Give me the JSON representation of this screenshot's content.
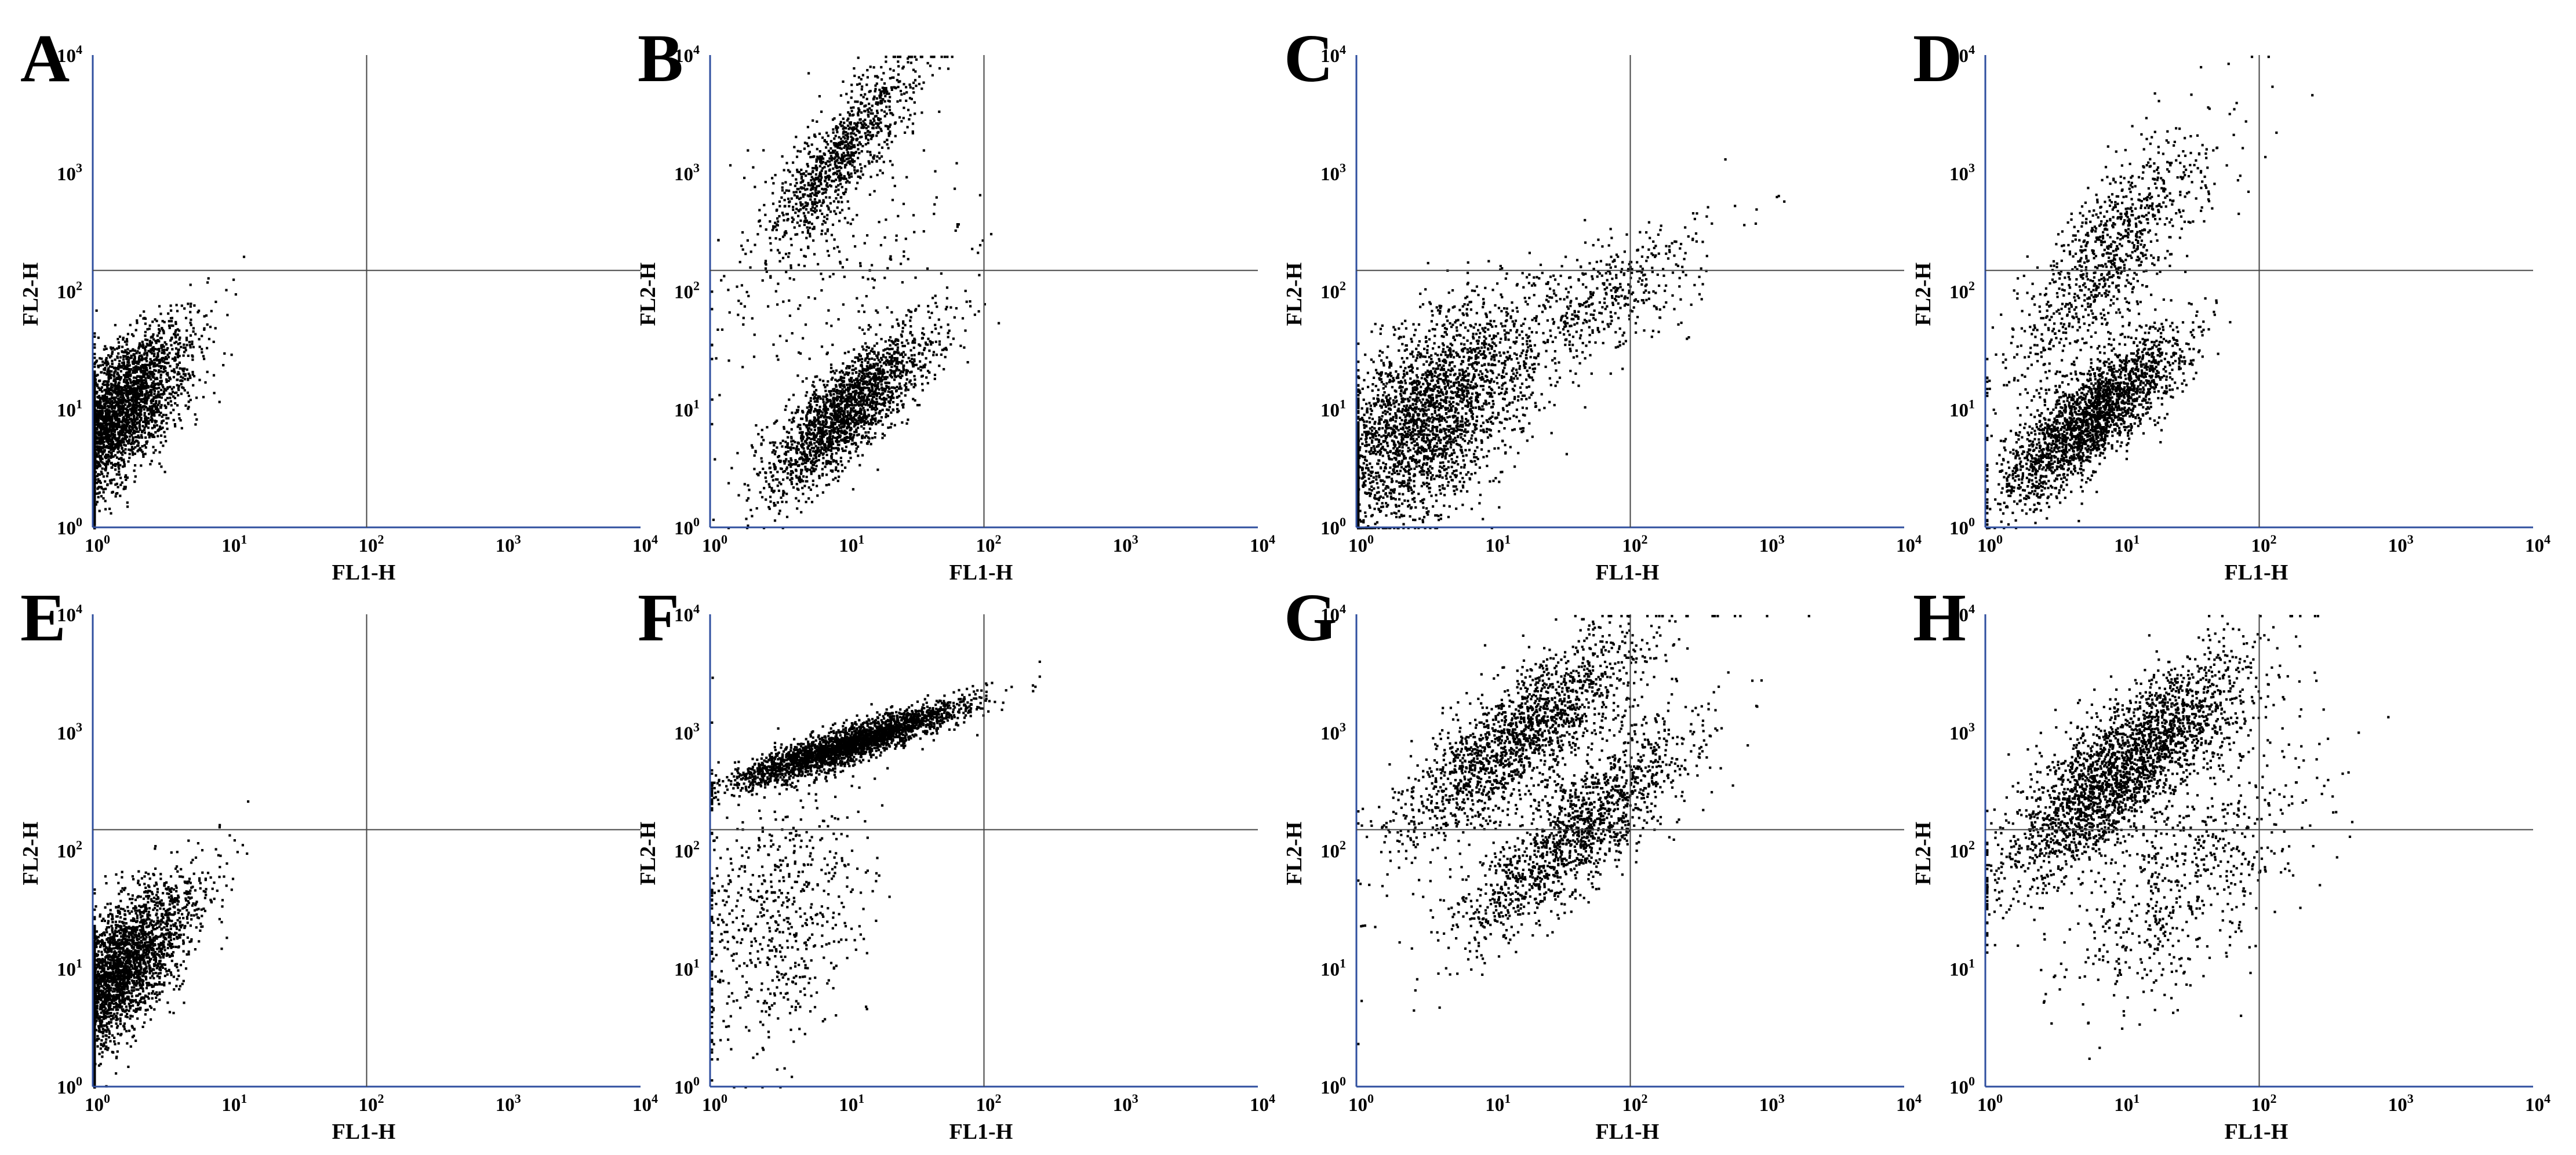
{
  "figure": {
    "panels": [
      "A",
      "B",
      "C",
      "D",
      "E",
      "F",
      "G",
      "H"
    ]
  },
  "chart_data": [
    {
      "panel": "A",
      "type": "scatter",
      "xscale": "log",
      "yscale": "log",
      "xlabel": "FL1-H",
      "ylabel": "FL2-H",
      "xlim": [
        1,
        10000
      ],
      "ylim": [
        1,
        10000
      ],
      "xticks": [
        "10^0",
        "10^1",
        "10^2",
        "10^3",
        "10^4"
      ],
      "yticks": [
        "10^0",
        "10^1",
        "10^2",
        "10^3",
        "10^4"
      ],
      "quadrant_gate": {
        "x": 100,
        "y": 150
      },
      "populations": [
        {
          "center": [
            1.4,
            9
          ],
          "spread": [
            1.9,
            2.4
          ],
          "corr": 0.7,
          "weight": 1.0
        }
      ]
    },
    {
      "panel": "B",
      "type": "scatter",
      "xscale": "log",
      "yscale": "log",
      "xlabel": "FL1-H",
      "ylabel": "FL2-H",
      "xlim": [
        1,
        10000
      ],
      "ylim": [
        1,
        10000
      ],
      "xticks": [
        "10^0",
        "10^1",
        "10^2",
        "10^3",
        "10^4"
      ],
      "yticks": [
        "10^0",
        "10^1",
        "10^2",
        "10^3",
        "10^4"
      ],
      "quadrant_gate": {
        "x": 100,
        "y": 150
      },
      "populations": [
        {
          "center": [
            10,
            10
          ],
          "spread": [
            2.0,
            2.2
          ],
          "corr": 0.8,
          "weight": 0.62
        },
        {
          "center": [
            9,
            1500
          ],
          "spread": [
            1.9,
            2.6
          ],
          "corr": 0.85,
          "weight": 0.3
        },
        {
          "center": [
            8,
            150
          ],
          "spread": [
            3.0,
            4.0
          ],
          "corr": 0.3,
          "weight": 0.08
        }
      ]
    },
    {
      "panel": "C",
      "type": "scatter",
      "xscale": "log",
      "yscale": "log",
      "xlabel": "FL1-H",
      "ylabel": "FL2-H",
      "xlim": [
        1,
        10000
      ],
      "ylim": [
        1,
        10000
      ],
      "xticks": [
        "10^0",
        "10^1",
        "10^2",
        "10^3",
        "10^4"
      ],
      "yticks": [
        "10^0",
        "10^1",
        "10^2",
        "10^3",
        "10^4"
      ],
      "quadrant_gate": {
        "x": 100,
        "y": 150
      },
      "populations": [
        {
          "center": [
            3,
            8
          ],
          "spread": [
            2.6,
            3.2
          ],
          "corr": 0.6,
          "weight": 0.85
        },
        {
          "center": [
            60,
            80
          ],
          "spread": [
            2.6,
            2.2
          ],
          "corr": 0.7,
          "weight": 0.15
        }
      ]
    },
    {
      "panel": "D",
      "type": "scatter",
      "xscale": "log",
      "yscale": "log",
      "xlabel": "FL1-H",
      "ylabel": "FL2-H",
      "xlim": [
        1,
        10000
      ],
      "ylim": [
        1,
        10000
      ],
      "xticks": [
        "10^0",
        "10^1",
        "10^2",
        "10^3",
        "10^4"
      ],
      "yticks": [
        "10^0",
        "10^1",
        "10^2",
        "10^3",
        "10^4"
      ],
      "quadrant_gate": {
        "x": 100,
        "y": 150
      },
      "populations": [
        {
          "center": [
            6,
            9
          ],
          "spread": [
            2.1,
            2.2
          ],
          "corr": 0.8,
          "weight": 0.7
        },
        {
          "center": [
            8,
            200
          ],
          "spread": [
            2.4,
            3.5
          ],
          "corr": 0.8,
          "weight": 0.3
        }
      ]
    },
    {
      "panel": "E",
      "type": "scatter",
      "xscale": "log",
      "yscale": "log",
      "xlabel": "FL1-H",
      "ylabel": "FL2-H",
      "xlim": [
        1,
        10000
      ],
      "ylim": [
        1,
        10000
      ],
      "xticks": [
        "10^0",
        "10^1",
        "10^2",
        "10^3",
        "10^4"
      ],
      "yticks": [
        "10^0",
        "10^1",
        "10^2",
        "10^3",
        "10^4"
      ],
      "quadrant_gate": {
        "x": 100,
        "y": 150
      },
      "populations": [
        {
          "center": [
            1.4,
            9
          ],
          "spread": [
            1.9,
            2.4
          ],
          "corr": 0.7,
          "weight": 1.0
        }
      ]
    },
    {
      "panel": "F",
      "type": "scatter",
      "xscale": "log",
      "yscale": "log",
      "xlabel": "FL1-H",
      "ylabel": "FL2-H",
      "xlim": [
        1,
        10000
      ],
      "ylim": [
        1,
        10000
      ],
      "xticks": [
        "10^0",
        "10^1",
        "10^2",
        "10^3",
        "10^4"
      ],
      "yticks": [
        "10^0",
        "10^1",
        "10^2",
        "10^3",
        "10^4"
      ],
      "quadrant_gate": {
        "x": 100,
        "y": 150
      },
      "populations": [
        {
          "center": [
            10,
            800
          ],
          "spread": [
            2.6,
            1.5
          ],
          "corr": 0.9,
          "weight": 0.8
        },
        {
          "center": [
            3,
            30
          ],
          "spread": [
            2.2,
            4.0
          ],
          "corr": 0.2,
          "weight": 0.2
        }
      ]
    },
    {
      "panel": "G",
      "type": "scatter",
      "xscale": "log",
      "yscale": "log",
      "xlabel": "FL1-H",
      "ylabel": "FL2-H",
      "xlim": [
        1,
        10000
      ],
      "ylim": [
        1,
        10000
      ],
      "xticks": [
        "10^0",
        "10^1",
        "10^2",
        "10^3",
        "10^4"
      ],
      "yticks": [
        "10^0",
        "10^1",
        "10^2",
        "10^3",
        "10^4"
      ],
      "quadrant_gate": {
        "x": 100,
        "y": 150
      },
      "populations": [
        {
          "center": [
            15,
            900
          ],
          "spread": [
            2.8,
            2.8
          ],
          "corr": 0.8,
          "weight": 0.55
        },
        {
          "center": [
            40,
            150
          ],
          "spread": [
            2.8,
            3.0
          ],
          "corr": 0.85,
          "weight": 0.45
        }
      ]
    },
    {
      "panel": "H",
      "type": "scatter",
      "xscale": "log",
      "yscale": "log",
      "xlabel": "FL1-H",
      "ylabel": "FL2-H",
      "xlim": [
        1,
        10000
      ],
      "ylim": [
        1,
        10000
      ],
      "xticks": [
        "10^0",
        "10^1",
        "10^2",
        "10^3",
        "10^4"
      ],
      "yticks": [
        "10^0",
        "10^1",
        "10^2",
        "10^3",
        "10^4"
      ],
      "quadrant_gate": {
        "x": 100,
        "y": 150
      },
      "populations": [
        {
          "center": [
            10,
            500
          ],
          "spread": [
            2.8,
            3.0
          ],
          "corr": 0.8,
          "weight": 0.8
        },
        {
          "center": [
            30,
            60
          ],
          "spread": [
            3.0,
            3.5
          ],
          "corr": 0.6,
          "weight": 0.2
        }
      ]
    }
  ]
}
